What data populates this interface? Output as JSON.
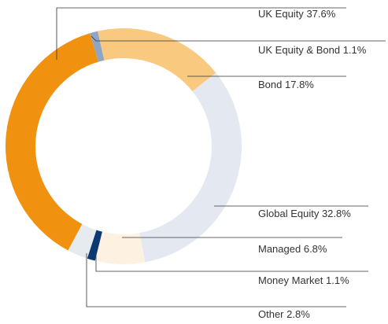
{
  "chart_data": {
    "type": "donut",
    "categories": [
      "UK Equity",
      "UK Equity & Bond",
      "Bond",
      "Global Equity",
      "Managed",
      "Money Market",
      "Other"
    ],
    "values": [
      37.6,
      1.1,
      17.8,
      32.8,
      6.8,
      1.1,
      2.8
    ],
    "value_labels": [
      "37.6%",
      "1.1%",
      "17.8%",
      "32.8%",
      "6.8%",
      "1.1%",
      "2.8%"
    ],
    "colors": [
      "#f0920f",
      "#8ea6c4",
      "#f8c97f",
      "#e4e9f1",
      "#fdf2e2",
      "#0b3a73",
      "#e6ebf0"
    ]
  }
}
